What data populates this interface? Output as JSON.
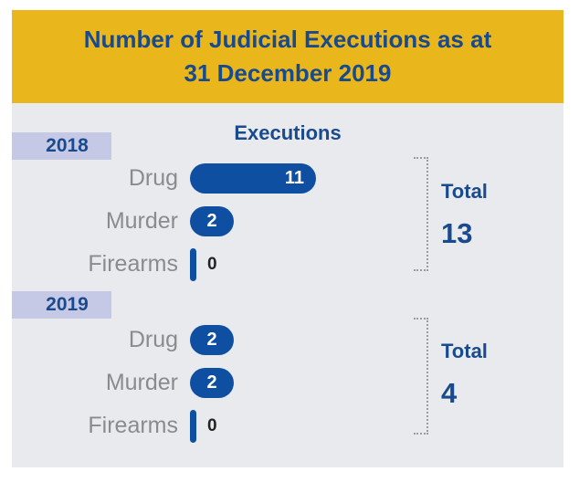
{
  "header": {
    "title_line1": "Number of Judicial Executions as at",
    "title_line2": "31 December 2019"
  },
  "chart_data": {
    "type": "bar",
    "orientation": "horizontal",
    "title": "Number of Judicial Executions as at 31 December 2019",
    "heading": "Executions",
    "categories": [
      "Drug",
      "Murder",
      "Firearms"
    ],
    "groups": [
      {
        "year": "2018",
        "values": [
          11,
          2,
          0
        ],
        "total_label": "Total",
        "total": 13
      },
      {
        "year": "2019",
        "values": [
          2,
          2,
          0
        ],
        "total_label": "Total",
        "total": 4
      }
    ],
    "legend": false,
    "grid": false,
    "xlim": [
      0,
      11
    ],
    "colors": {
      "header_bg": "#e9b71c",
      "title_text": "#1a4a8e",
      "bar": "#0e4fa1",
      "year_band_bg": "#c5c9e6",
      "body_bg": "#e9eaee",
      "label_text": "#8a8b8e",
      "zero_value_text": "#232323",
      "bracket": "#9b9b9b",
      "value_text": "#ffffff"
    }
  }
}
